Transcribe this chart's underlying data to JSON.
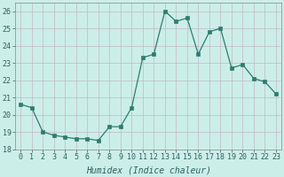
{
  "x": [
    0,
    1,
    2,
    3,
    4,
    5,
    6,
    7,
    8,
    9,
    10,
    11,
    12,
    13,
    14,
    15,
    16,
    17,
    18,
    19,
    20,
    21,
    22,
    23
  ],
  "y": [
    20.6,
    20.4,
    19.0,
    18.8,
    18.7,
    18.6,
    18.6,
    18.5,
    19.3,
    19.3,
    20.4,
    23.3,
    23.5,
    26.0,
    25.4,
    25.6,
    23.5,
    24.8,
    25.0,
    22.7,
    22.9,
    22.1,
    21.9,
    21.2
  ],
  "line_color": "#2d7d6e",
  "marker_color": "#2d7d6e",
  "bg_color": "#cceee8",
  "grid_color": "#c0b8c8",
  "xlabel": "Humidex (Indice chaleur)",
  "ylim": [
    18,
    26.5
  ],
  "xlim": [
    -0.5,
    23.5
  ],
  "yticks": [
    18,
    19,
    20,
    21,
    22,
    23,
    24,
    25,
    26
  ],
  "xticks": [
    0,
    1,
    2,
    3,
    4,
    5,
    6,
    7,
    8,
    9,
    10,
    11,
    12,
    13,
    14,
    15,
    16,
    17,
    18,
    19,
    20,
    21,
    22,
    23
  ],
  "tick_fontsize": 6.0,
  "label_fontsize": 7.0
}
